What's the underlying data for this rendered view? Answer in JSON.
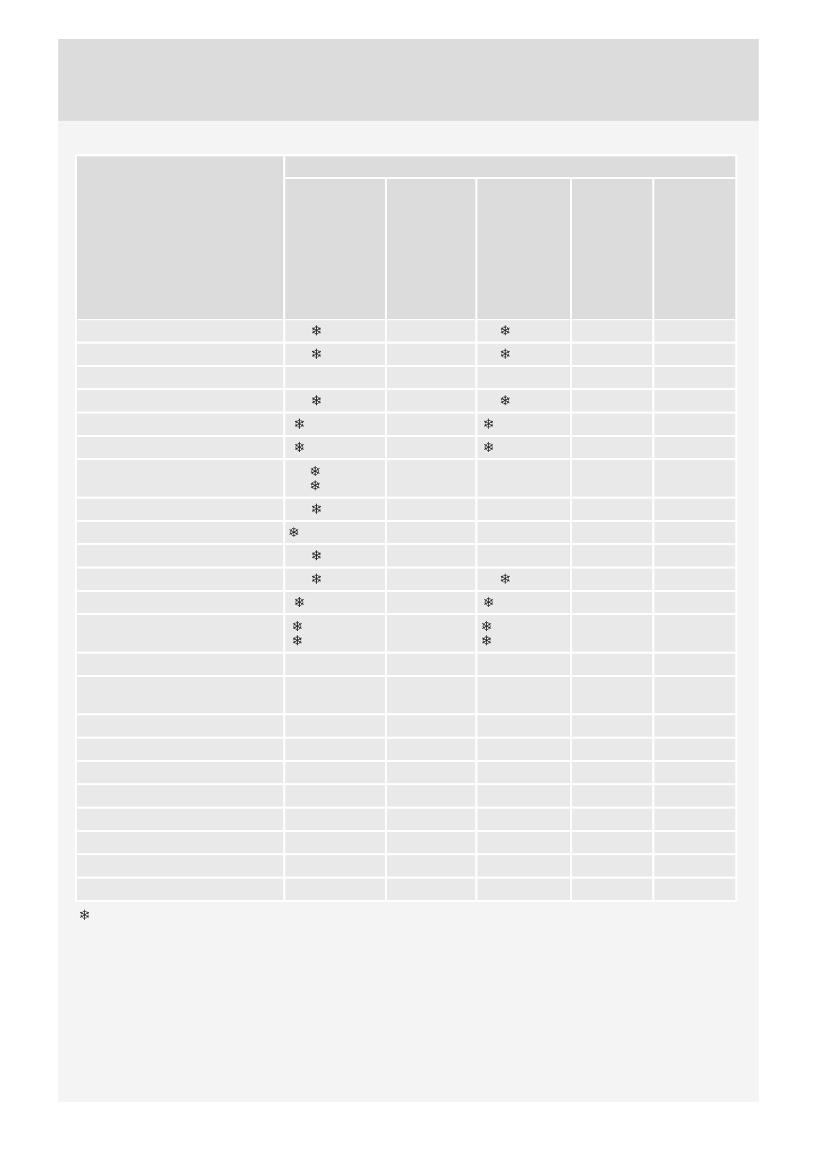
{
  "page": {
    "background_color": "#ffffff",
    "panel_color": "#f4f4f4",
    "banner_color": "#dcdcdc"
  },
  "symbols": {
    "snowflake": "❄"
  },
  "table": {
    "header_cell_color": "#dcdcdc",
    "body_cell_color": "#e9e9e9",
    "symbol_color": "#2b2b2b",
    "column_count": 5,
    "rows": [
      {
        "c1": {
          "marks": 1,
          "pos": "inset"
        },
        "c3": {
          "marks": 1,
          "pos": "inset"
        }
      },
      {
        "c1": {
          "marks": 1,
          "pos": "inset"
        },
        "c3": {
          "marks": 1,
          "pos": "inset"
        }
      },
      {},
      {
        "c1": {
          "marks": 1,
          "pos": "inset"
        },
        "c3": {
          "marks": 1,
          "pos": "inset"
        }
      },
      {
        "c1": {
          "marks": 1,
          "pos": "left"
        },
        "c3": {
          "marks": 1,
          "pos": "left"
        }
      },
      {
        "c1": {
          "marks": 1,
          "pos": "left"
        },
        "c3": {
          "marks": 1,
          "pos": "left"
        }
      },
      {
        "tall": true,
        "c1": {
          "marks": 2,
          "pos": "stack-inset"
        }
      },
      {
        "c1": {
          "marks": 1,
          "pos": "inset"
        }
      },
      {
        "c1": {
          "marks": 1,
          "pos": "farleft"
        }
      },
      {
        "c1": {
          "marks": 1,
          "pos": "inset"
        }
      },
      {
        "c1": {
          "marks": 1,
          "pos": "inset"
        },
        "c3": {
          "marks": 1,
          "pos": "inset"
        }
      },
      {
        "c1": {
          "marks": 1,
          "pos": "left"
        },
        "c3": {
          "marks": 1,
          "pos": "left"
        }
      },
      {
        "tall": true,
        "c1": {
          "marks": 2,
          "pos": "stack-left"
        },
        "c3": {
          "marks": 2,
          "pos": "stack-left"
        }
      },
      {},
      {
        "tall": true
      },
      {},
      {},
      {},
      {},
      {},
      {},
      {},
      {}
    ]
  },
  "footnote": {
    "marker": "❄"
  }
}
